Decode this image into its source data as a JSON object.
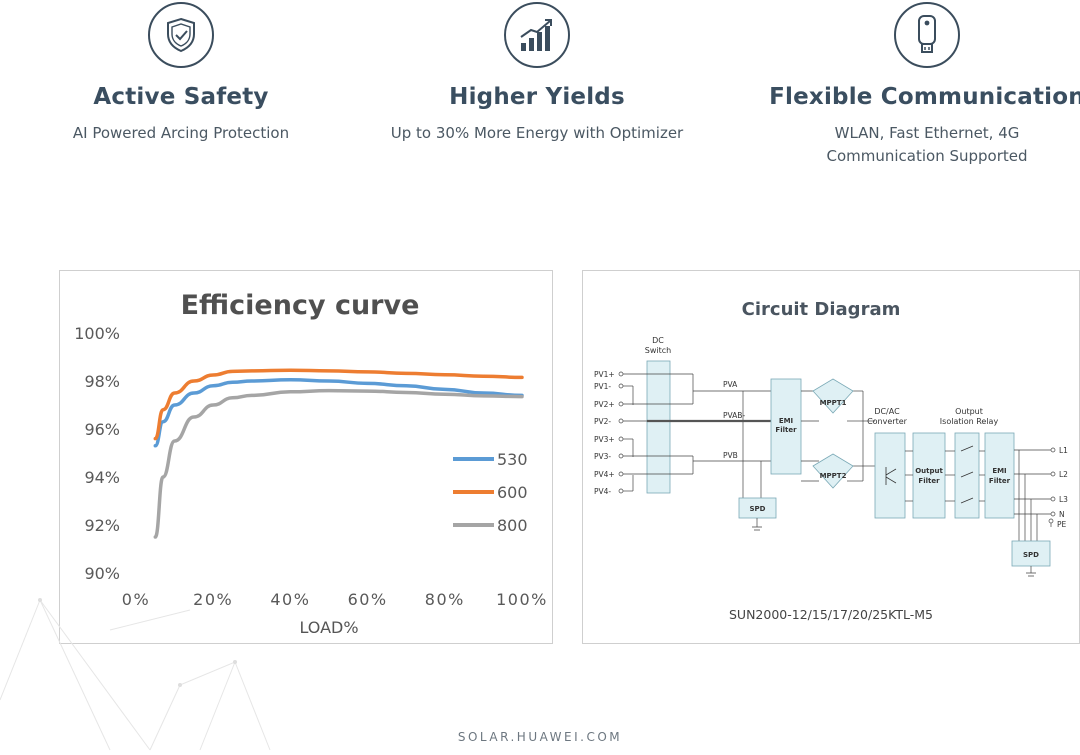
{
  "features": [
    {
      "icon": "shield-check-icon",
      "title": "Active Safety",
      "lines": [
        "AI Powered Arcing Protection"
      ]
    },
    {
      "icon": "growth-bars-icon",
      "title": "Higher Yields",
      "lines": [
        "Up to 30% More Energy with Optimizer"
      ]
    },
    {
      "icon": "dongle-icon",
      "title": "Flexible Communication",
      "lines": [
        "WLAN, Fast Ethernet, 4G",
        "Communication Supported"
      ]
    }
  ],
  "chart_data": {
    "type": "line",
    "title": "Efficiency curve",
    "xlabel": "LOAD%",
    "ylabel": "",
    "xlim": [
      0,
      100
    ],
    "ylim": [
      90,
      100
    ],
    "x_ticks": [
      "0%",
      "20%",
      "40%",
      "60%",
      "80%",
      "100%"
    ],
    "y_ticks": [
      "90%",
      "92%",
      "94%",
      "96%",
      "98%",
      "100%"
    ],
    "grid": false,
    "legend": "right",
    "x": [
      5,
      7,
      10,
      15,
      20,
      25,
      30,
      40,
      50,
      60,
      70,
      80,
      90,
      100
    ],
    "series": [
      {
        "name": "530",
        "color": "#5b9bd5",
        "values": [
          95.3,
          96.3,
          97.0,
          97.5,
          97.8,
          97.95,
          98.0,
          98.05,
          98.0,
          97.9,
          97.8,
          97.65,
          97.5,
          97.4
        ]
      },
      {
        "name": "600",
        "color": "#ed7d31",
        "values": [
          95.6,
          96.8,
          97.5,
          98.0,
          98.25,
          98.4,
          98.42,
          98.45,
          98.42,
          98.38,
          98.32,
          98.26,
          98.2,
          98.15
        ]
      },
      {
        "name": "800",
        "color": "#a5a5a5",
        "values": [
          91.5,
          94.0,
          95.5,
          96.5,
          97.0,
          97.3,
          97.4,
          97.55,
          97.6,
          97.58,
          97.52,
          97.45,
          97.38,
          97.35
        ]
      }
    ]
  },
  "circuit": {
    "title": "Circuit Diagram",
    "caption": "SUN2000-12/15/17/20/25KTL-M5",
    "dc_switch": [
      "DC",
      "Switch"
    ],
    "pv_labels": [
      "PV1+",
      "PV1-",
      "PV2+",
      "PV2-",
      "PV3+",
      "PV3-",
      "PV4+",
      "PV4-"
    ],
    "bus_labels": [
      "PVA",
      "PVAB-",
      "PVB"
    ],
    "emi_filter": [
      "EMI",
      "Filter"
    ],
    "mppt": [
      "MPPT1",
      "MPPT2"
    ],
    "dcac": [
      "DC/AC",
      "Converter"
    ],
    "output_filter": [
      "Output",
      "Filter"
    ],
    "isolation": [
      "Output",
      "Isolation Relay"
    ],
    "spd": "SPD",
    "outputs": [
      "L1",
      "L2",
      "L3",
      "N",
      "PE"
    ]
  },
  "footer": "SOLAR.HUAWEI.COM"
}
